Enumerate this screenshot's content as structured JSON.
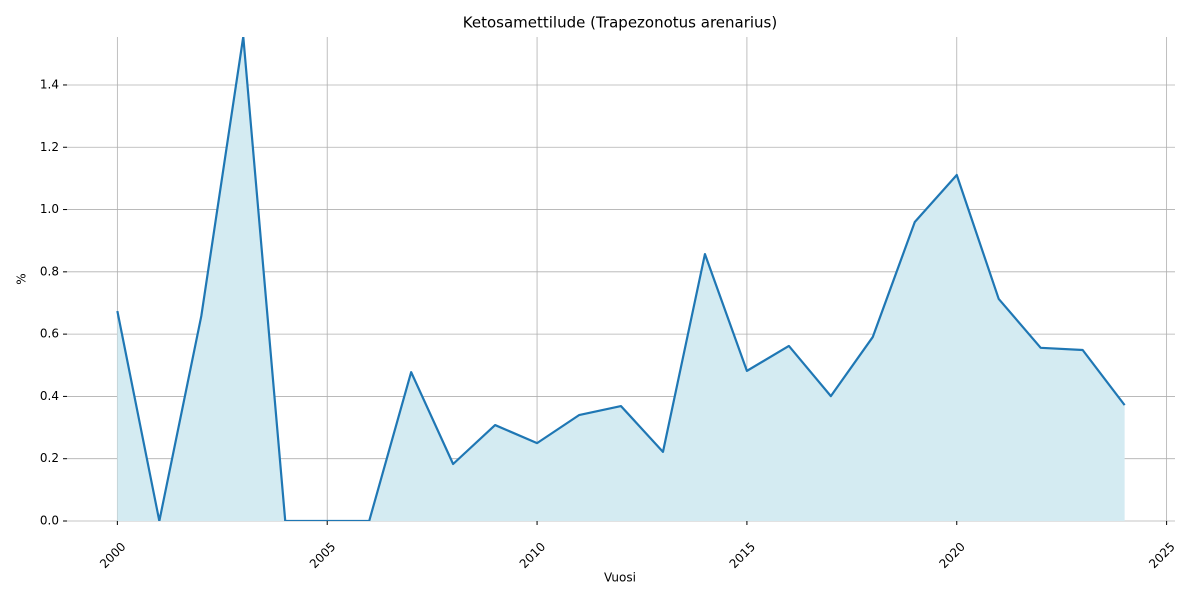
{
  "chart_data": {
    "type": "line",
    "title": "Ketosamettilude (Trapezonotus arenarius)",
    "xlabel": "Vuosi",
    "ylabel": "%",
    "x": [
      2000,
      2001,
      2002,
      2003,
      2004,
      2005,
      2006,
      2007,
      2008,
      2009,
      2010,
      2011,
      2012,
      2013,
      2014,
      2015,
      2016,
      2017,
      2018,
      2019,
      2020,
      2021,
      2022,
      2023,
      2024
    ],
    "series": [
      {
        "name": "%",
        "color": "#1f77b4",
        "fill": "#d4ebf2",
        "values": [
          0.674,
          0,
          0.658,
          1.555,
          0,
          0,
          0,
          0.478,
          0.183,
          0.308,
          0.25,
          0.34,
          0.369,
          0.222,
          0.857,
          0.482,
          0.562,
          0.401,
          0.591,
          0.96,
          1.111,
          0.713,
          0.556,
          0.549,
          0.372
        ]
      }
    ],
    "xlim": [
      1998.8,
      2025.2
    ],
    "xticks": [
      2000,
      2005,
      2010,
      2015,
      2020,
      2025
    ],
    "ylim": [
      0,
      1.554
    ],
    "yticks": [
      {
        "value": 0,
        "label": "0.0"
      },
      0.2,
      0.4,
      0.6,
      0.8,
      {
        "value": 1,
        "label": "1.0"
      },
      1.2,
      1.4
    ],
    "grid": true
  }
}
